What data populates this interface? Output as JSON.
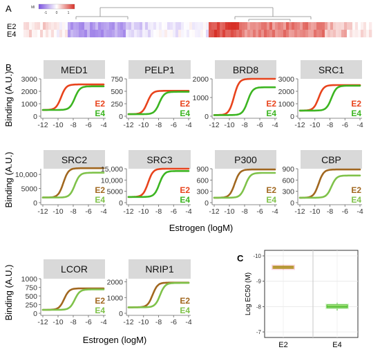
{
  "panels": {
    "a": "A",
    "b": "B",
    "c": "C"
  },
  "heatmap": {
    "legend_title": "MI",
    "legend_ticks": [
      "-1",
      "0",
      "1"
    ],
    "row_labels": [
      "E2",
      "E4"
    ],
    "colors": {
      "low": "#7b52e0",
      "mid": "#ffffff",
      "high": "#d73027"
    }
  },
  "axis_labels": {
    "binding": "Binding (A.U.)",
    "estrogen": "Estrogen (logM)"
  },
  "colors": {
    "e2": "#e8431c",
    "e4": "#3cb521",
    "e2_olive": "#a1671f",
    "e4_light": "#7fc24a",
    "strip": "#d9d9d9"
  },
  "chart_data": [
    {
      "type": "line",
      "title": "MED1",
      "x_ticks": [
        "-12",
        "-10",
        "-8",
        "-6",
        "-4"
      ],
      "y_ticks": [
        "0",
        "1000",
        "2000",
        "3000"
      ],
      "ylim": [
        0,
        3000
      ],
      "series": [
        {
          "name": "E2",
          "bottom": 500,
          "top": 2550,
          "ec50_logM": -9.6
        },
        {
          "name": "E4",
          "bottom": 500,
          "top": 2400,
          "ec50_logM": -7.8
        }
      ]
    },
    {
      "type": "line",
      "title": "PELP1",
      "x_ticks": [
        "-12",
        "-10",
        "-8",
        "-6",
        "-4"
      ],
      "y_ticks": [
        "0",
        "250",
        "500",
        "750"
      ],
      "ylim": [
        0,
        750
      ],
      "series": [
        {
          "name": "E2",
          "bottom": 40,
          "top": 510,
          "ec50_logM": -9.5
        },
        {
          "name": "E4",
          "bottom": 40,
          "top": 490,
          "ec50_logM": -7.9
        }
      ]
    },
    {
      "type": "line",
      "title": "BRD8",
      "x_ticks": [
        "-12",
        "-10",
        "-8",
        "-6",
        "-4"
      ],
      "y_ticks": [
        "0",
        "1000",
        "2000"
      ],
      "ylim": [
        0,
        2000
      ],
      "series": [
        {
          "name": "E2",
          "bottom": 60,
          "top": 2000,
          "ec50_logM": -9.4
        },
        {
          "name": "E4",
          "bottom": 60,
          "top": 1550,
          "ec50_logM": -7.6
        }
      ]
    },
    {
      "type": "line",
      "title": "SRC1",
      "x_ticks": [
        "-12",
        "-10",
        "-8",
        "-6",
        "-4"
      ],
      "y_ticks": [
        "0",
        "1000",
        "2000",
        "3000"
      ],
      "ylim": [
        0,
        3000
      ],
      "series": [
        {
          "name": "E2",
          "bottom": 450,
          "top": 2500,
          "ec50_logM": -9.5
        },
        {
          "name": "E4",
          "bottom": 450,
          "top": 2450,
          "ec50_logM": -7.8
        }
      ]
    },
    {
      "type": "line",
      "title": "SRC2",
      "x_ticks": [
        "-12",
        "-10",
        "-8",
        "-6",
        "-4"
      ],
      "y_ticks": [
        "0",
        "5000",
        "10,000"
      ],
      "ylim": [
        0,
        12000
      ],
      "series": [
        {
          "name": "E2",
          "bottom": 1800,
          "top": 12200,
          "ec50_logM": -9.3
        },
        {
          "name": "E4",
          "bottom": 1800,
          "top": 10600,
          "ec50_logM": -7.8
        }
      ]
    },
    {
      "type": "line",
      "title": "SRC3",
      "x_ticks": [
        "-12",
        "-10",
        "-8",
        "-6",
        "-4"
      ],
      "y_ticks": [
        "0",
        "5000",
        "10,000",
        "15,000"
      ],
      "ylim": [
        0,
        15000
      ],
      "series": [
        {
          "name": "E2",
          "bottom": 2500,
          "top": 15000,
          "ec50_logM": -9.4
        },
        {
          "name": "E4",
          "bottom": 2500,
          "top": 14000,
          "ec50_logM": -7.9
        }
      ]
    },
    {
      "type": "line",
      "title": "P300",
      "x_ticks": [
        "-12",
        "-10",
        "-8",
        "-6",
        "-4"
      ],
      "y_ticks": [
        "0",
        "300",
        "600",
        "900"
      ],
      "ylim": [
        0,
        900
      ],
      "series": [
        {
          "name": "E2",
          "bottom": 130,
          "top": 880,
          "ec50_logM": -9.3
        },
        {
          "name": "E4",
          "bottom": 130,
          "top": 790,
          "ec50_logM": -7.9
        }
      ]
    },
    {
      "type": "line",
      "title": "CBP",
      "x_ticks": [
        "-12",
        "-10",
        "-8",
        "-6",
        "-4"
      ],
      "y_ticks": [
        "0",
        "300",
        "600",
        "900"
      ],
      "ylim": [
        0,
        900
      ],
      "series": [
        {
          "name": "E2",
          "bottom": 130,
          "top": 880,
          "ec50_logM": -9.5
        },
        {
          "name": "E4",
          "bottom": 130,
          "top": 720,
          "ec50_logM": -7.8
        }
      ]
    },
    {
      "type": "line",
      "title": "LCOR",
      "x_ticks": [
        "-12",
        "-10",
        "-8",
        "-6",
        "-4"
      ],
      "y_ticks": [
        "0",
        "250",
        "500",
        "750",
        "1000"
      ],
      "ylim": [
        0,
        1000
      ],
      "series": [
        {
          "name": "E2",
          "bottom": 100,
          "top": 720,
          "ec50_logM": -9.2
        },
        {
          "name": "E4",
          "bottom": 100,
          "top": 690,
          "ec50_logM": -7.8
        }
      ]
    },
    {
      "type": "line",
      "title": "NRIP1",
      "x_ticks": [
        "-12",
        "-10",
        "-8",
        "-6",
        "-4"
      ],
      "y_ticks": [
        "0",
        "1000",
        "2000"
      ],
      "ylim": [
        0,
        2200
      ],
      "series": [
        {
          "name": "E2",
          "bottom": 380,
          "top": 1950,
          "ec50_logM": -8.8
        },
        {
          "name": "E4",
          "bottom": 380,
          "top": 1930,
          "ec50_logM": -7.8
        }
      ]
    },
    {
      "type": "box",
      "categories": [
        "E2",
        "E4"
      ],
      "ylabel": "Log EC50 (M)",
      "y_ticks": [
        "-10",
        "-9",
        "-8",
        "-7"
      ],
      "ylim": [
        -10,
        -7
      ],
      "y_reversed": true,
      "values": [
        {
          "median": -9.55,
          "q1": -9.6,
          "q3": -9.5,
          "whisker_low": -9.65,
          "whisker_high": -9.45
        },
        {
          "median": -8.0,
          "q1": -8.07,
          "q3": -7.95,
          "whisker_low": -8.15,
          "whisker_high": -7.85
        }
      ]
    }
  ]
}
